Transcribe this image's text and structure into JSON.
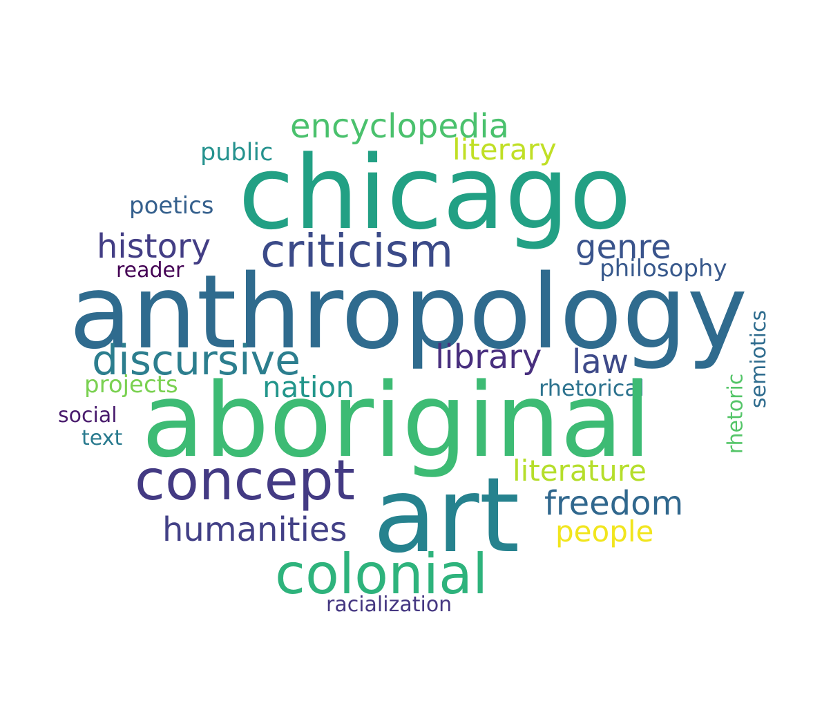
{
  "words": {
    "anthropology": {
      "text": "anthropology",
      "color": "#2f6b8e"
    },
    "aboriginal": {
      "text": "aboriginal",
      "color": "#3dbb74"
    },
    "chicago": {
      "text": "chicago",
      "color": "#22a084"
    },
    "art": {
      "text": "art",
      "color": "#26828e"
    },
    "criticism": {
      "text": "criticism",
      "color": "#3b4a88"
    },
    "concept": {
      "text": "concept",
      "color": "#433a83"
    },
    "colonial": {
      "text": "colonial",
      "color": "#2eb37c"
    },
    "discursive": {
      "text": "discursive",
      "color": "#2c7e8e"
    },
    "encyclopedia": {
      "text": "encyclopedia",
      "color": "#4ac16d"
    },
    "history": {
      "text": "history",
      "color": "#433e85"
    },
    "genre": {
      "text": "genre",
      "color": "#3a548c"
    },
    "library": {
      "text": "library",
      "color": "#482f7e"
    },
    "law": {
      "text": "law",
      "color": "#3e4a89"
    },
    "humanities": {
      "text": "humanities",
      "color": "#424086"
    },
    "freedom": {
      "text": "freedom",
      "color": "#30678d"
    },
    "nation": {
      "text": "nation",
      "color": "#23968b"
    },
    "literary": {
      "text": "literary",
      "color": "#c0df25"
    },
    "literature": {
      "text": "literature",
      "color": "#b5de2b"
    },
    "people": {
      "text": "people",
      "color": "#f1e51d"
    },
    "public": {
      "text": "public",
      "color": "#25928e"
    },
    "poetics": {
      "text": "poetics",
      "color": "#35608d"
    },
    "philosophy": {
      "text": "philosophy",
      "color": "#38598c"
    },
    "reader": {
      "text": "reader",
      "color": "#440154"
    },
    "projects": {
      "text": "projects",
      "color": "#7ad151"
    },
    "rhetorical": {
      "text": "rhetorical",
      "color": "#2c728e"
    },
    "social": {
      "text": "social",
      "color": "#481a6c"
    },
    "text": {
      "text": "text",
      "color": "#297a8e"
    },
    "racialization": {
      "text": "racialization",
      "color": "#453781"
    },
    "rhetoric": {
      "text": "rhetoric",
      "color": "#54c568"
    },
    "semiotics": {
      "text": "semiotics",
      "color": "#2f6c8e"
    }
  }
}
